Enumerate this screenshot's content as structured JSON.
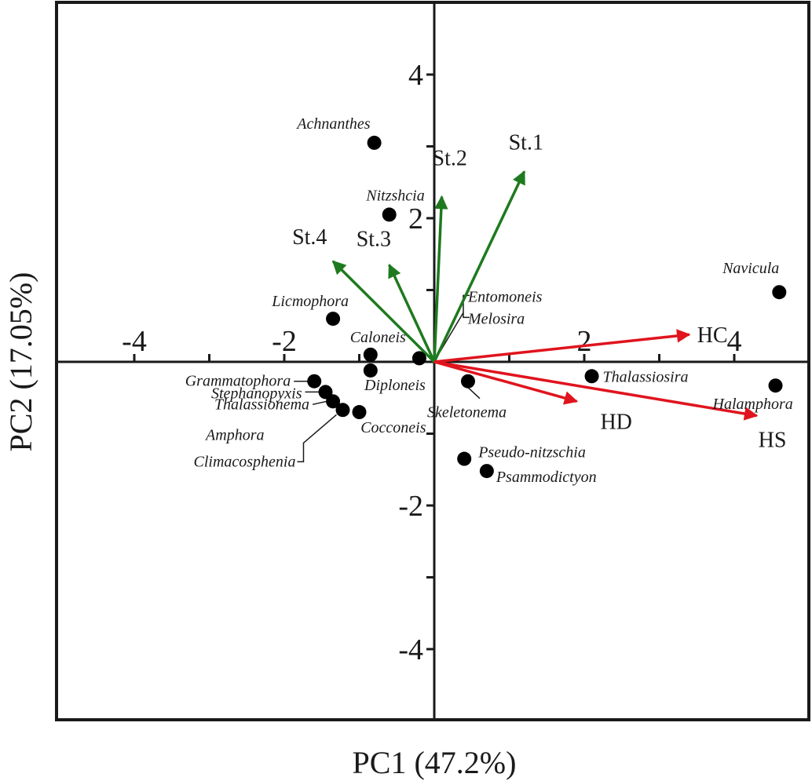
{
  "chart_data": {
    "type": "scatter",
    "subtype": "pca-biplot",
    "title": "",
    "xlabel": "PC1 (47.2%)",
    "ylabel": "PC2 (17.05%)",
    "xlim": [
      -5.2,
      5.2
    ],
    "ylim": [
      -5.0,
      5.0
    ],
    "x_ticks": [
      -4,
      -2,
      2,
      4
    ],
    "x_tick_labels": [
      "-4",
      "-2",
      "2",
      "4"
    ],
    "y_ticks": [
      4,
      2,
      -2,
      -4
    ],
    "y_tick_labels": [
      "4",
      "2",
      "-2",
      "-4"
    ],
    "grid": false,
    "species": [
      {
        "name": "Achnanthes",
        "x": -0.8,
        "y": 3.05
      },
      {
        "name": "Nitzshcia",
        "x": -0.6,
        "y": 2.05
      },
      {
        "name": "Licmophora",
        "x": -1.35,
        "y": 0.6
      },
      {
        "name": "Caloneis",
        "x": -0.85,
        "y": 0.1
      },
      {
        "name": "Diploneis",
        "x": -0.85,
        "y": -0.12
      },
      {
        "name": "Entomoneis",
        "x": -0.2,
        "y": 0.05
      },
      {
        "name": "Melosira",
        "x": -0.2,
        "y": 0.05
      },
      {
        "name": "Grammatophora",
        "x": -1.6,
        "y": -0.27
      },
      {
        "name": "Stephanopyxis",
        "x": -1.45,
        "y": -0.42
      },
      {
        "name": "Thalassionema",
        "x": -1.35,
        "y": -0.55
      },
      {
        "name": "Amphora",
        "x": -1.22,
        "y": -0.67
      },
      {
        "name": "Climacosphenia",
        "x": -1.22,
        "y": -0.67
      },
      {
        "name": "Cocconeis",
        "x": -1.0,
        "y": -0.7
      },
      {
        "name": "Skeletonema",
        "x": 0.45,
        "y": -0.27
      },
      {
        "name": "Thalassiosira",
        "x": 2.1,
        "y": -0.2
      },
      {
        "name": "Halamphora",
        "x": 4.55,
        "y": -0.33
      },
      {
        "name": "Navicula",
        "x": 4.6,
        "y": 0.97
      },
      {
        "name": "Pseudo-nitzschia",
        "x": 0.4,
        "y": -1.35
      },
      {
        "name": "Psammodictyon",
        "x": 0.7,
        "y": -1.52
      }
    ],
    "station_vectors": [
      {
        "name": "St.1",
        "x": 1.2,
        "y": 2.65,
        "color": "#1e7a1e"
      },
      {
        "name": "St.2",
        "x": 0.1,
        "y": 2.3,
        "color": "#1e7a1e"
      },
      {
        "name": "St.3",
        "x": -0.6,
        "y": 1.35,
        "color": "#1e7a1e"
      },
      {
        "name": "St.4",
        "x": -1.35,
        "y": 1.4,
        "color": "#1e7a1e"
      }
    ],
    "variable_vectors": [
      {
        "name": "HC",
        "x": 3.4,
        "y": 0.38,
        "color": "#e0141e"
      },
      {
        "name": "HD",
        "x": 1.9,
        "y": -0.55,
        "color": "#e0141e"
      },
      {
        "name": "HS",
        "x": 4.3,
        "y": -0.75,
        "color": "#e0141e"
      }
    ]
  }
}
